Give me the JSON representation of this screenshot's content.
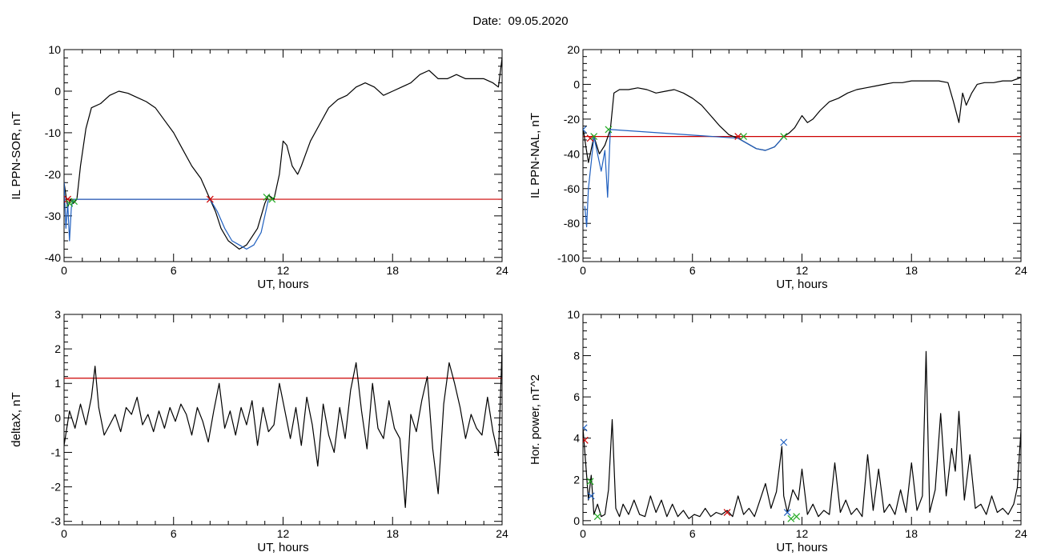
{
  "page": {
    "title": "Date:  09.05.2020"
  },
  "chart_data": [
    {
      "type": "line",
      "xlabel": "UT, hours",
      "ylabel": "IL PPN-SOR, nT",
      "xlim": [
        0,
        24
      ],
      "ylim": [
        -41,
        10
      ],
      "xticks": [
        0,
        6,
        12,
        18,
        24
      ],
      "yticks": [
        -40,
        -30,
        -20,
        -10,
        0,
        10
      ],
      "grid": false,
      "threshold": {
        "y": -26,
        "color": "#cc0000"
      },
      "series": [
        {
          "color": "#000000",
          "x": [
            0.0,
            0.2,
            0.35,
            0.5,
            0.7,
            0.9,
            1.2,
            1.5,
            2.0,
            2.5,
            3.0,
            3.5,
            4.0,
            4.5,
            5.0,
            5.5,
            6.0,
            6.5,
            7.0,
            7.5,
            8.0,
            8.3,
            8.6,
            9.0,
            9.3,
            9.6,
            10.0,
            10.3,
            10.6,
            11.0,
            11.2,
            11.5,
            11.8,
            12.0,
            12.2,
            12.5,
            12.8,
            13.0,
            13.5,
            14.0,
            14.5,
            15.0,
            15.5,
            16.0,
            16.5,
            17.0,
            17.5,
            18.0,
            18.5,
            19.0,
            19.5,
            20.0,
            20.5,
            21.0,
            21.5,
            22.0,
            22.5,
            23.0,
            23.5,
            23.8,
            24.0
          ],
          "y": [
            -22,
            -28,
            -26,
            -27,
            -26,
            -18,
            -9,
            -4,
            -3,
            -1,
            0,
            -0.5,
            -1.5,
            -2.5,
            -4,
            -7,
            -10,
            -14,
            -18,
            -21,
            -26,
            -29,
            -33,
            -36,
            -37,
            -38,
            -37,
            -35,
            -33,
            -27,
            -25,
            -26,
            -20,
            -12,
            -13,
            -18,
            -20,
            -18,
            -12,
            -8,
            -4,
            -2,
            -1,
            1,
            2,
            1,
            -1,
            0,
            1,
            2,
            4,
            5,
            3,
            3,
            4,
            3,
            3,
            3,
            2,
            1,
            8
          ]
        },
        {
          "color": "#1f5fbf",
          "x": [
            0.0,
            0.1,
            0.2,
            0.3,
            0.4,
            0.5,
            8.0,
            8.4,
            8.8,
            9.2,
            9.6,
            10.0,
            10.4,
            10.8,
            11.2
          ],
          "y": [
            -22,
            -33,
            -27,
            -36,
            -28,
            -26,
            -26,
            -29,
            -33,
            -36,
            -37,
            -38,
            -37,
            -34,
            -26
          ]
        }
      ],
      "markers": [
        {
          "x": 0.2,
          "y": -26,
          "symbol": "x",
          "color": "#cc0000"
        },
        {
          "x": 0.3,
          "y": -27,
          "symbol": "x",
          "color": "#22aa22"
        },
        {
          "x": 0.55,
          "y": -26.5,
          "symbol": "x",
          "color": "#22aa22"
        },
        {
          "x": 8.0,
          "y": -26,
          "symbol": "x",
          "color": "#cc0000"
        },
        {
          "x": 11.1,
          "y": -25.5,
          "symbol": "x",
          "color": "#22aa22"
        },
        {
          "x": 11.4,
          "y": -26,
          "symbol": "x",
          "color": "#22aa22"
        }
      ]
    },
    {
      "type": "line",
      "xlabel": "UT, hours",
      "ylabel": "IL PPN-NAL, nT",
      "xlim": [
        0,
        24
      ],
      "ylim": [
        -102,
        20
      ],
      "xticks": [
        0,
        6,
        12,
        18,
        24
      ],
      "yticks": [
        -100,
        -80,
        -60,
        -40,
        -20,
        0,
        20
      ],
      "grid": false,
      "threshold": {
        "y": -30,
        "color": "#cc0000"
      },
      "series": [
        {
          "color": "#000000",
          "x": [
            0.0,
            0.3,
            0.6,
            0.9,
            1.2,
            1.5,
            1.7,
            2.0,
            2.5,
            3.0,
            3.5,
            4.0,
            4.5,
            5.0,
            5.5,
            6.0,
            6.5,
            7.0,
            7.5,
            8.0,
            8.5,
            9.0,
            9.5,
            10.0,
            10.5,
            11.0,
            11.3,
            11.6,
            12.0,
            12.3,
            12.6,
            13.0,
            13.5,
            14.0,
            14.5,
            15.0,
            15.5,
            16.0,
            16.5,
            17.0,
            17.5,
            18.0,
            18.5,
            19.0,
            19.5,
            20.0,
            20.3,
            20.6,
            20.8,
            21.0,
            21.3,
            21.6,
            22.0,
            22.5,
            23.0,
            23.5,
            24.0
          ],
          "y": [
            -25,
            -45,
            -30,
            -40,
            -35,
            -26,
            -5,
            -3,
            -3,
            -2,
            -3,
            -5,
            -4,
            -3,
            -5,
            -8,
            -12,
            -18,
            -24,
            -29,
            -31,
            -34,
            -37,
            -38,
            -36,
            -30,
            -28,
            -25,
            -18,
            -22,
            -20,
            -15,
            -10,
            -8,
            -5,
            -3,
            -2,
            -1,
            0,
            1,
            1,
            2,
            2,
            2,
            2,
            1,
            -10,
            -22,
            -5,
            -12,
            -5,
            0,
            1,
            1,
            2,
            2,
            4
          ]
        },
        {
          "color": "#1f5fbf",
          "x": [
            0.1,
            0.2,
            0.3,
            0.45,
            0.6,
            0.8,
            1.0,
            1.2,
            1.35,
            1.5,
            8.5,
            9.0,
            9.5,
            10.0,
            10.5,
            11.0
          ],
          "y": [
            -70,
            -82,
            -60,
            -45,
            -30,
            -40,
            -50,
            -38,
            -65,
            -26,
            -31,
            -34,
            -37,
            -38,
            -36,
            -30
          ]
        }
      ],
      "markers": [
        {
          "x": 0.0,
          "y": -26,
          "symbol": "x",
          "color": "#1f5fbf"
        },
        {
          "x": 0.4,
          "y": -31,
          "symbol": "x",
          "color": "#cc0000"
        },
        {
          "x": 0.6,
          "y": -30,
          "symbol": "x",
          "color": "#22aa22"
        },
        {
          "x": 1.4,
          "y": -26,
          "symbol": "x",
          "color": "#22aa22"
        },
        {
          "x": 8.5,
          "y": -30,
          "symbol": "x",
          "color": "#cc0000"
        },
        {
          "x": 8.8,
          "y": -30,
          "symbol": "x",
          "color": "#22aa22"
        },
        {
          "x": 11.0,
          "y": -30,
          "symbol": "x",
          "color": "#22aa22"
        }
      ]
    },
    {
      "type": "line",
      "xlabel": "UT, hours",
      "ylabel": "deltaX, nT",
      "xlim": [
        0,
        24
      ],
      "ylim": [
        -3.1,
        3
      ],
      "xticks": [
        0,
        6,
        12,
        18,
        24
      ],
      "yticks": [
        -3,
        -2,
        -1,
        0,
        1,
        2,
        3
      ],
      "grid": false,
      "threshold": {
        "y": 1.15,
        "color": "#cc0000"
      },
      "series": [
        {
          "color": "#000000",
          "x": [
            0.0,
            0.3,
            0.6,
            0.9,
            1.2,
            1.5,
            1.7,
            1.9,
            2.2,
            2.5,
            2.8,
            3.1,
            3.4,
            3.7,
            4.0,
            4.3,
            4.6,
            4.9,
            5.2,
            5.5,
            5.8,
            6.1,
            6.4,
            6.7,
            7.0,
            7.3,
            7.6,
            7.9,
            8.2,
            8.5,
            8.8,
            9.1,
            9.4,
            9.7,
            10.0,
            10.3,
            10.6,
            10.9,
            11.2,
            11.5,
            11.8,
            12.1,
            12.4,
            12.7,
            13.0,
            13.3,
            13.6,
            13.9,
            14.2,
            14.5,
            14.8,
            15.1,
            15.4,
            15.7,
            16.0,
            16.3,
            16.6,
            16.9,
            17.2,
            17.5,
            17.8,
            18.1,
            18.4,
            18.7,
            19.0,
            19.3,
            19.6,
            19.9,
            20.2,
            20.5,
            20.8,
            21.1,
            21.4,
            21.7,
            22.0,
            22.3,
            22.6,
            22.9,
            23.2,
            23.5,
            23.8,
            24.0
          ],
          "y": [
            -0.8,
            0.2,
            -0.3,
            0.4,
            -0.2,
            0.6,
            1.5,
            0.3,
            -0.5,
            -0.2,
            0.1,
            -0.4,
            0.3,
            0.1,
            0.6,
            -0.2,
            0.1,
            -0.4,
            0.2,
            -0.3,
            0.3,
            -0.1,
            0.4,
            0.1,
            -0.5,
            0.3,
            -0.1,
            -0.7,
            0.2,
            1.0,
            -0.3,
            0.2,
            -0.5,
            0.3,
            -0.2,
            0.5,
            -0.8,
            0.3,
            -0.4,
            -0.2,
            1.0,
            0.2,
            -0.6,
            0.3,
            -0.8,
            0.6,
            -0.2,
            -1.4,
            0.4,
            -0.5,
            -1.0,
            0.3,
            -0.6,
            0.8,
            1.6,
            0.2,
            -0.9,
            1.0,
            -0.3,
            -0.6,
            0.5,
            -0.3,
            -0.6,
            -2.6,
            0.1,
            -0.4,
            0.5,
            1.2,
            -0.9,
            -2.2,
            0.4,
            1.6,
            1.0,
            0.3,
            -0.6,
            0.1,
            -0.3,
            -0.5,
            0.6,
            -0.4,
            -1.1,
            2.0
          ]
        }
      ],
      "markers": []
    },
    {
      "type": "line",
      "xlabel": "UT, hours",
      "ylabel": "Hor. power, nT^2",
      "xlim": [
        0,
        24
      ],
      "ylim": [
        -0.2,
        10
      ],
      "xticks": [
        0,
        6,
        12,
        18,
        24
      ],
      "yticks": [
        0,
        2,
        4,
        6,
        8,
        10
      ],
      "grid": false,
      "series": [
        {
          "color": "#000000",
          "x": [
            0.0,
            0.15,
            0.3,
            0.45,
            0.6,
            0.8,
            1.0,
            1.2,
            1.4,
            1.6,
            1.8,
            2.0,
            2.2,
            2.5,
            2.8,
            3.1,
            3.4,
            3.7,
            4.0,
            4.3,
            4.6,
            4.9,
            5.2,
            5.5,
            5.8,
            6.1,
            6.4,
            6.7,
            7.0,
            7.3,
            7.6,
            7.9,
            8.2,
            8.5,
            8.8,
            9.1,
            9.4,
            9.7,
            10.0,
            10.3,
            10.6,
            10.9,
            11.0,
            11.2,
            11.5,
            11.8,
            12.0,
            12.3,
            12.6,
            12.9,
            13.2,
            13.5,
            13.8,
            14.1,
            14.4,
            14.7,
            15.0,
            15.3,
            15.6,
            15.9,
            16.2,
            16.5,
            16.8,
            17.1,
            17.4,
            17.7,
            18.0,
            18.3,
            18.6,
            18.8,
            19.0,
            19.3,
            19.6,
            19.9,
            20.2,
            20.4,
            20.6,
            20.9,
            21.2,
            21.5,
            21.8,
            22.1,
            22.4,
            22.7,
            23.0,
            23.3,
            23.6,
            23.8,
            24.0
          ],
          "y": [
            4.5,
            2.8,
            1.0,
            2.2,
            0.3,
            0.8,
            0.2,
            0.3,
            1.5,
            4.9,
            0.6,
            0.2,
            0.8,
            0.3,
            1.0,
            0.3,
            0.2,
            1.2,
            0.4,
            1.0,
            0.2,
            0.8,
            0.2,
            0.5,
            0.1,
            0.3,
            0.2,
            0.6,
            0.2,
            0.4,
            0.3,
            0.5,
            0.2,
            1.2,
            0.3,
            0.6,
            0.2,
            1.0,
            1.8,
            0.6,
            1.4,
            3.6,
            1.2,
            0.4,
            1.5,
            1.0,
            2.5,
            0.3,
            0.8,
            0.2,
            0.5,
            0.3,
            2.8,
            0.4,
            1.0,
            0.3,
            0.6,
            0.2,
            3.2,
            0.5,
            2.5,
            0.4,
            0.8,
            0.3,
            1.5,
            0.4,
            2.8,
            0.5,
            1.2,
            8.2,
            0.4,
            1.5,
            5.2,
            1.2,
            3.5,
            2.4,
            5.3,
            1.0,
            3.2,
            0.6,
            0.8,
            0.3,
            1.2,
            0.4,
            0.6,
            0.3,
            0.8,
            1.6,
            4.4
          ]
        }
      ],
      "markers": [
        {
          "x": 0.05,
          "y": 4.5,
          "symbol": "x",
          "color": "#1f5fbf"
        },
        {
          "x": 0.1,
          "y": 3.9,
          "symbol": "x",
          "color": "#cc0000"
        },
        {
          "x": 0.4,
          "y": 1.9,
          "symbol": "x",
          "color": "#22aa22"
        },
        {
          "x": 0.45,
          "y": 1.2,
          "symbol": "x",
          "color": "#1f5fbf"
        },
        {
          "x": 0.8,
          "y": 0.2,
          "symbol": "x",
          "color": "#22aa22"
        },
        {
          "x": 7.9,
          "y": 0.4,
          "symbol": "x",
          "color": "#cc0000"
        },
        {
          "x": 11.0,
          "y": 3.8,
          "symbol": "x",
          "color": "#1f5fbf"
        },
        {
          "x": 11.2,
          "y": 0.4,
          "symbol": "x",
          "color": "#1f5fbf"
        },
        {
          "x": 11.4,
          "y": 0.1,
          "symbol": "x",
          "color": "#22aa22"
        },
        {
          "x": 11.7,
          "y": 0.2,
          "symbol": "x",
          "color": "#22aa22"
        }
      ]
    }
  ]
}
